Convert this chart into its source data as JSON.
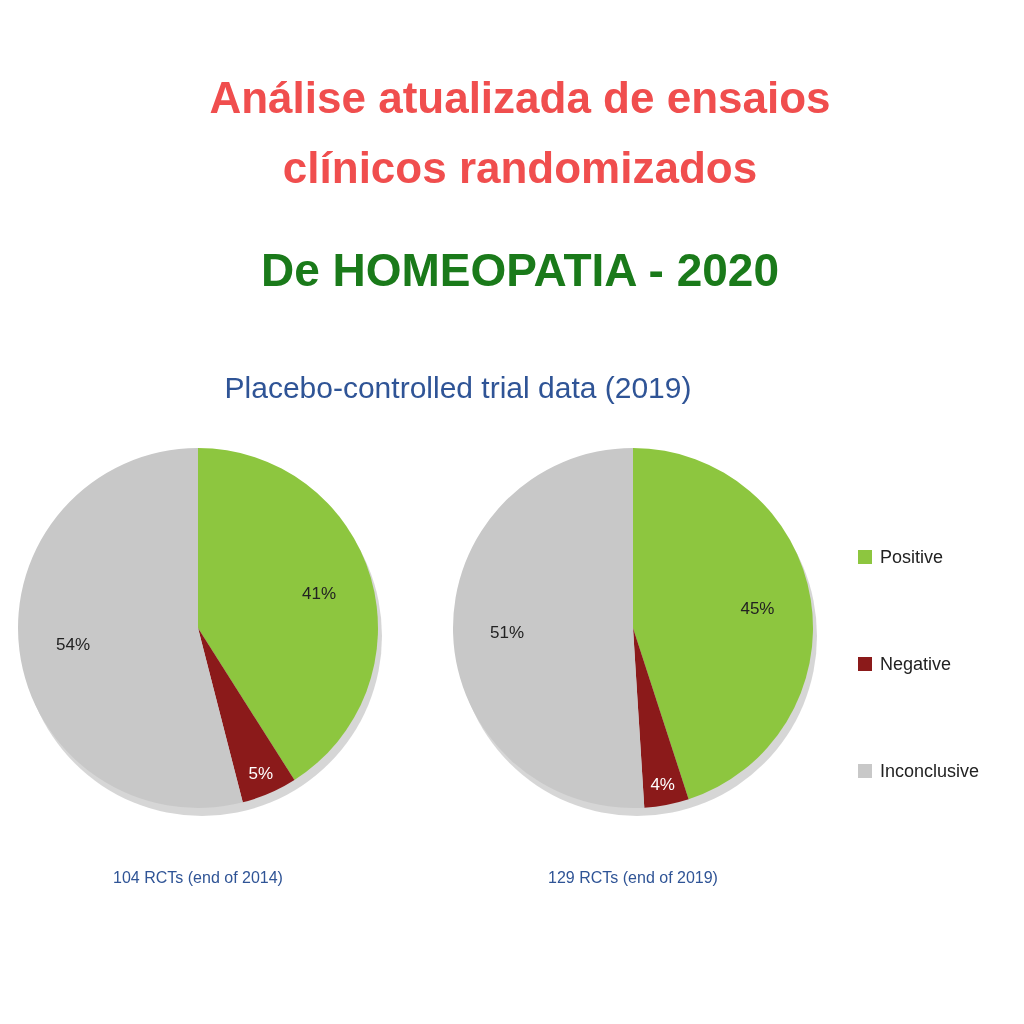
{
  "chart_data": [
    {
      "type": "pie",
      "title": "Análise atualizada de ensaios clínicos randomizados",
      "subtitle": "De HOMEOPATIA - 2020",
      "annotations": [
        "Placebo-controlled trial data (2019)"
      ],
      "xlabel": "104 RCTs (end of 2014)",
      "categories": [
        null,
        null,
        null
      ],
      "values": [
        41,
        5,
        54
      ],
      "value_labels": [
        "41%",
        "5%",
        "54%"
      ],
      "colors": [
        "#8dc63f",
        "#8b1a1a",
        "#c8c8c8"
      ],
      "legend": false
    },
    {
      "type": "pie",
      "xlabel": "129 RCTs (end of 2019)",
      "categories": [
        "Positive",
        "Negative",
        "Inconclusive"
      ],
      "values": [
        45,
        4,
        51
      ],
      "value_labels": [
        "45%",
        "4%",
        "51%"
      ],
      "colors": [
        "#8dc63f",
        "#8b1a1a",
        "#c8c8c8"
      ],
      "legend": "right"
    }
  ]
}
